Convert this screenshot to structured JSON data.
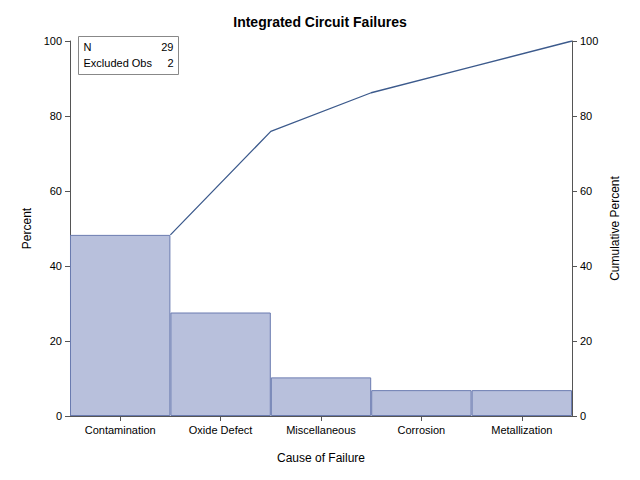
{
  "chart_data": {
    "type": "bar",
    "title": "Integrated Circuit Failures",
    "x_label": "Cause of Failure",
    "y_label": "Percent",
    "y2_label": "Cumulative Percent",
    "categories": [
      "Contamination",
      "Oxide Defect",
      "Miscellaneous",
      "Corrosion",
      "Metallization"
    ],
    "series": [
      {
        "type": "bar",
        "color": "#b8c0dc",
        "values": [
          48.3,
          27.6,
          10.3,
          6.9,
          6.9
        ]
      },
      {
        "type": "line",
        "axis": "y2",
        "color": "#3c5a8c",
        "values": [
          48.3,
          75.9,
          86.2,
          93.1,
          100
        ]
      }
    ],
    "ylim": [
      0,
      100
    ],
    "yticks": [
      0,
      20,
      40,
      60,
      80,
      100
    ],
    "y2lim": [
      0,
      100
    ],
    "y2ticks": [
      0,
      20,
      40,
      60,
      80,
      100
    ],
    "grid": false,
    "legend": false,
    "inset": [
      {
        "label": "N",
        "value": 29
      },
      {
        "label": "Excluded Obs",
        "value": 2
      }
    ]
  }
}
